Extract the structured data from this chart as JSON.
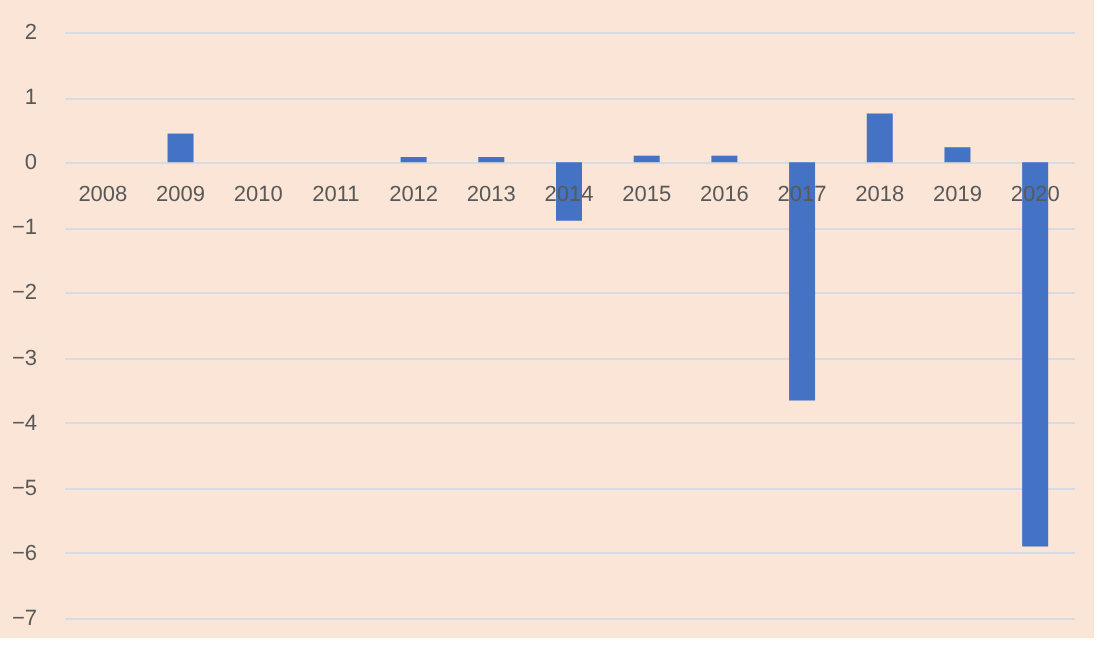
{
  "chart_data": {
    "type": "bar",
    "categories": [
      "2008",
      "2009",
      "2010",
      "2011",
      "2012",
      "2013",
      "2014",
      "2015",
      "2016",
      "2017",
      "2018",
      "2019",
      "2020"
    ],
    "values": [
      0,
      0.44,
      0,
      0,
      0.08,
      0.08,
      -0.9,
      0.1,
      0.1,
      -3.66,
      0.75,
      0.23,
      -5.9
    ],
    "color": "#4472c4",
    "ylim": [
      -7,
      2
    ],
    "yticks": [
      -7,
      -6,
      -5,
      -4,
      -3,
      -2,
      -1,
      0,
      1,
      2
    ],
    "grid": "y"
  }
}
